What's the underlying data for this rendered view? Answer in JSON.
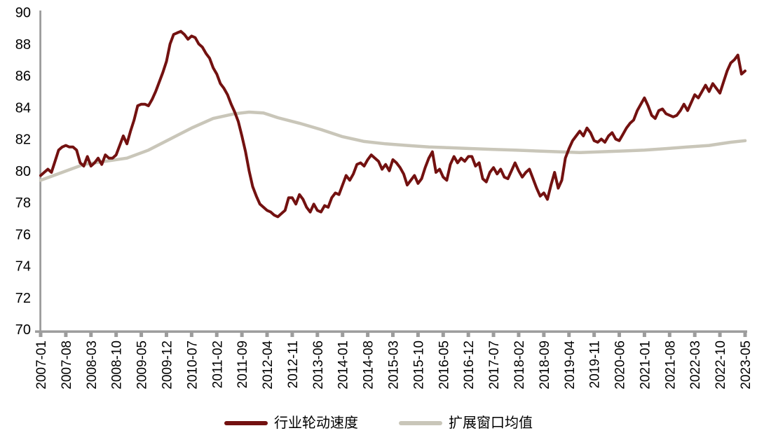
{
  "page": {
    "background": "#FFFFFF"
  },
  "chart_data": {
    "type": "line",
    "title": "",
    "x_unit": "month",
    "x_start": "2007-01",
    "x_end": "2023-05",
    "x_labels": [
      "2007-01",
      "2007-08",
      "2008-03",
      "2008-10",
      "2009-05",
      "2009-12",
      "2010-07",
      "2011-02",
      "2011-09",
      "2012-04",
      "2012-11",
      "2013-06",
      "2014-01",
      "2014-08",
      "2015-03",
      "2015-10",
      "2016-05",
      "2016-12",
      "2017-07",
      "2018-02",
      "2018-09",
      "2019-04",
      "2019-11",
      "2020-06",
      "2021-01",
      "2021-08",
      "2022-03",
      "2022-10",
      "2023-05"
    ],
    "x_label_month_positions": [
      0,
      7,
      14,
      21,
      28,
      35,
      42,
      49,
      56,
      63,
      70,
      77,
      84,
      91,
      98,
      105,
      112,
      119,
      126,
      133,
      140,
      147,
      154,
      161,
      168,
      175,
      182,
      189,
      196
    ],
    "ylim": [
      70,
      90
    ],
    "y_ticks": [
      70,
      72,
      74,
      76,
      78,
      80,
      82,
      84,
      86,
      88,
      90
    ],
    "grid": "off",
    "legend_position": "bottom-center",
    "axis_color": "#9D9D9D",
    "text_color": "#000000",
    "series": [
      {
        "name": "行业轮动速度",
        "color": "#731110",
        "line_width": 4,
        "sampling": "monthly from 2007-01, index = months since 2007-01",
        "values": [
          79.7,
          79.9,
          80.1,
          79.9,
          80.6,
          81.3,
          81.5,
          81.6,
          81.5,
          81.5,
          81.3,
          80.5,
          80.3,
          80.9,
          80.3,
          80.5,
          80.8,
          80.4,
          81.0,
          80.8,
          80.8,
          81.0,
          81.6,
          82.2,
          81.7,
          82.5,
          83.2,
          84.1,
          84.2,
          84.2,
          84.1,
          84.5,
          85.0,
          85.6,
          86.2,
          86.9,
          88.0,
          88.6,
          88.7,
          88.8,
          88.6,
          88.3,
          88.5,
          88.4,
          88.0,
          87.8,
          87.4,
          87.1,
          86.5,
          86.1,
          85.5,
          85.2,
          84.8,
          84.2,
          83.7,
          83.1,
          82.2,
          81.2,
          80.0,
          79.0,
          78.4,
          77.9,
          77.7,
          77.5,
          77.4,
          77.2,
          77.1,
          77.3,
          77.5,
          78.3,
          78.3,
          77.9,
          78.5,
          78.2,
          77.7,
          77.4,
          77.9,
          77.5,
          77.4,
          77.8,
          77.7,
          78.3,
          78.6,
          78.5,
          79.1,
          79.7,
          79.4,
          79.8,
          80.4,
          80.5,
          80.3,
          80.7,
          81.0,
          80.8,
          80.6,
          80.1,
          80.4,
          80.0,
          80.7,
          80.5,
          80.2,
          79.8,
          79.1,
          79.4,
          79.7,
          79.2,
          79.5,
          80.2,
          80.8,
          81.2,
          79.9,
          80.1,
          79.6,
          79.4,
          80.4,
          80.9,
          80.5,
          80.8,
          80.6,
          80.9,
          80.9,
          80.3,
          80.5,
          79.5,
          79.3,
          79.9,
          80.2,
          79.8,
          80.1,
          79.6,
          79.5,
          80.0,
          80.5,
          80.0,
          79.6,
          79.9,
          80.1,
          79.5,
          78.9,
          78.4,
          78.6,
          78.2,
          79.1,
          79.9,
          78.9,
          79.4,
          80.8,
          81.4,
          81.9,
          82.2,
          82.5,
          82.2,
          82.7,
          82.4,
          81.9,
          81.8,
          82.0,
          81.8,
          82.2,
          82.4,
          82.0,
          81.9,
          82.3,
          82.7,
          83.0,
          83.2,
          83.8,
          84.2,
          84.6,
          84.1,
          83.5,
          83.3,
          83.8,
          83.9,
          83.6,
          83.5,
          83.4,
          83.5,
          83.8,
          84.2,
          83.8,
          84.3,
          84.8,
          84.6,
          85.0,
          85.4,
          85.0,
          85.5,
          85.2,
          84.9,
          85.6,
          86.3,
          86.8,
          87.0,
          87.3,
          86.1,
          86.3
        ]
      },
      {
        "name": "扩展窗口均值",
        "color": "#C9C6B9",
        "line_width": 4.5,
        "sampling": "anchor points [month_index, value]",
        "points": [
          [
            0,
            79.4
          ],
          [
            6,
            79.9
          ],
          [
            12,
            80.4
          ],
          [
            18,
            80.6
          ],
          [
            24,
            80.8
          ],
          [
            30,
            81.3
          ],
          [
            36,
            82.0
          ],
          [
            42,
            82.7
          ],
          [
            48,
            83.3
          ],
          [
            54,
            83.6
          ],
          [
            58,
            83.7
          ],
          [
            62,
            83.65
          ],
          [
            66,
            83.35
          ],
          [
            72,
            83.0
          ],
          [
            78,
            82.6
          ],
          [
            84,
            82.15
          ],
          [
            90,
            81.85
          ],
          [
            96,
            81.7
          ],
          [
            102,
            81.6
          ],
          [
            108,
            81.5
          ],
          [
            114,
            81.45
          ],
          [
            120,
            81.4
          ],
          [
            126,
            81.35
          ],
          [
            132,
            81.3
          ],
          [
            138,
            81.25
          ],
          [
            144,
            81.2
          ],
          [
            150,
            81.15
          ],
          [
            156,
            81.2
          ],
          [
            162,
            81.25
          ],
          [
            168,
            81.3
          ],
          [
            174,
            81.4
          ],
          [
            180,
            81.5
          ],
          [
            186,
            81.6
          ],
          [
            192,
            81.8
          ],
          [
            196,
            81.9
          ]
        ]
      }
    ]
  }
}
